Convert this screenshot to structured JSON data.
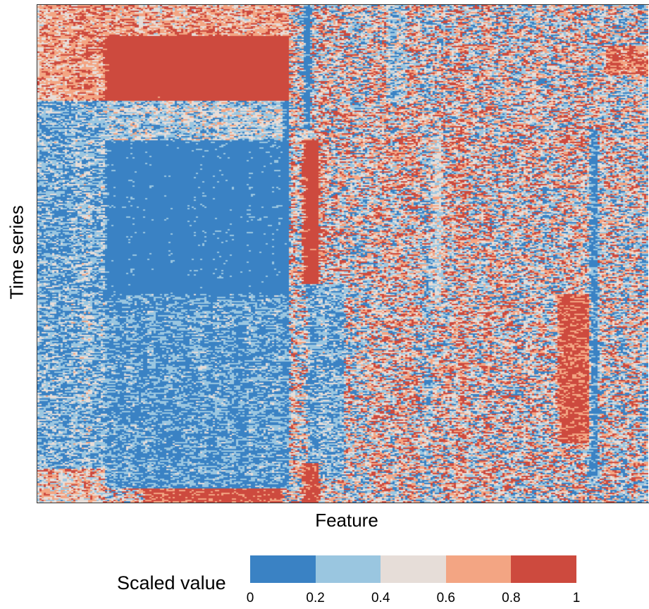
{
  "chart_data": {
    "type": "heatmap",
    "title": "",
    "xlabel": "Feature",
    "ylabel": "Time series",
    "color_scale": {
      "title": "Scaled value",
      "range": [
        0,
        1
      ],
      "breaks": [
        0,
        0.2,
        0.4,
        0.6,
        0.8,
        1
      ],
      "tick_labels": [
        "0",
        "0.2",
        "0.4",
        "0.6",
        "0.8",
        "1"
      ],
      "bin_colors": [
        "#3a82c4",
        "#9ac6e0",
        "#e6ddd8",
        "#f3a583",
        "#cd4a3e"
      ]
    },
    "notes": "Hierarchically clustered matrix of many time series (rows) by many features (columns); values in [0,1]. Upper-left block mostly high (~0.9), large left-center block mostly low (~0.1), right side highly mixed."
  }
}
